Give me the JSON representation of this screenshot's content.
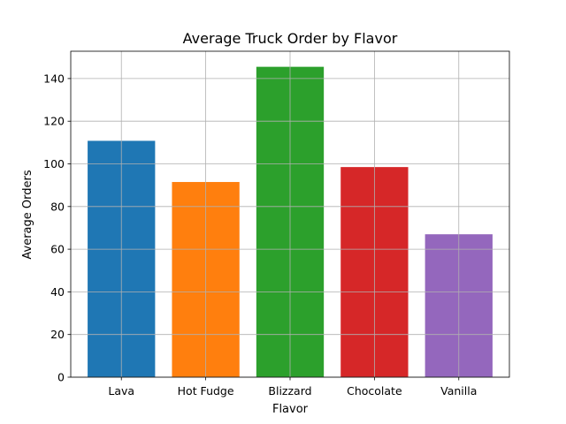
{
  "chart_data": {
    "type": "bar",
    "title": "Average Truck Order by Flavor",
    "xlabel": "Flavor",
    "ylabel": "Average Orders",
    "categories": [
      "Lava",
      "Hot Fudge",
      "Blizzard",
      "Chocolate",
      "Vanilla"
    ],
    "values": [
      110.8,
      91.5,
      145.5,
      98.5,
      67.0
    ],
    "colors": [
      "#1f77b4",
      "#ff7f0e",
      "#2ca02c",
      "#d62728",
      "#9467bd"
    ],
    "ylim": [
      0,
      152.8
    ],
    "yticks": [
      0,
      20,
      40,
      60,
      80,
      100,
      120,
      140
    ],
    "grid": true,
    "legend": "none"
  }
}
